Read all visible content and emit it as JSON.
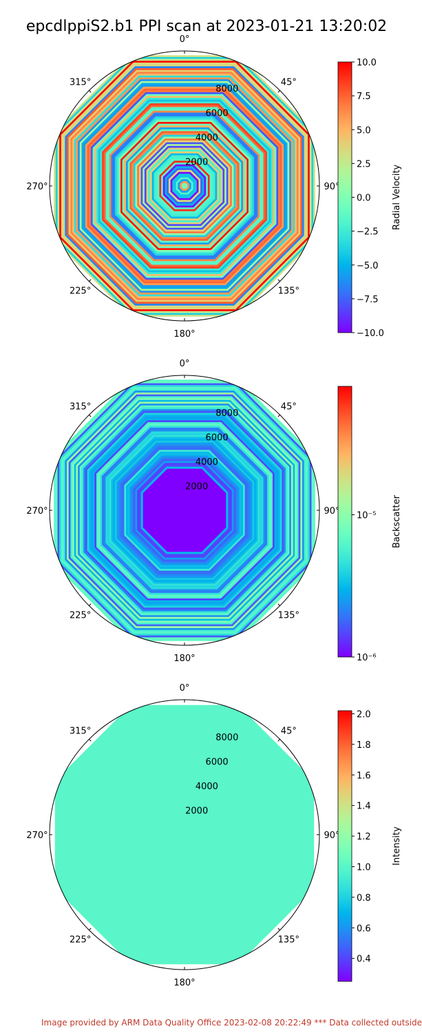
{
  "title": "epcdlppiS2.b1 PPI scan at 2023-01-21 13:20:02",
  "footer": "Image provided by ARM Data Quality Office 2023-02-08 20:22:49    *** Data collected outside",
  "chart_data": [
    {
      "type": "polar",
      "angle_labels": [
        "0°",
        "45°",
        "90°",
        "135°",
        "180°",
        "225°",
        "270°",
        "315°"
      ],
      "radial_ticks": [
        2000,
        4000,
        6000,
        8000
      ],
      "radial_tick_labels": [
        "2000",
        "4000",
        "6000",
        "8000"
      ],
      "rmax": 10000,
      "colorbar": {
        "label": "Radial Velocity",
        "scale": "linear",
        "colormap": "rainbow",
        "range": [
          -10.0,
          10.0
        ],
        "ticks": [
          -10.0,
          -7.5,
          -5.0,
          -2.5,
          0.0,
          2.5,
          5.0,
          7.5,
          10.0
        ],
        "tick_labels": [
          "−10.0",
          "−7.5",
          "−5.0",
          "−2.5",
          "0.0",
          "2.5",
          "5.0",
          "7.5",
          "10.0"
        ]
      },
      "field": "radial_velocity"
    },
    {
      "type": "polar",
      "angle_labels": [
        "0°",
        "45°",
        "90°",
        "135°",
        "180°",
        "225°",
        "270°",
        "315°"
      ],
      "radial_ticks": [
        2000,
        4000,
        6000,
        8000
      ],
      "radial_tick_labels": [
        "2000",
        "4000",
        "6000",
        "8000"
      ],
      "rmax": 10000,
      "colorbar": {
        "label": "Backscatter",
        "scale": "log",
        "colormap": "rainbow",
        "range": [
          1e-06,
          8e-05
        ],
        "ticks": [
          1e-06,
          1e-05
        ],
        "tick_labels": [
          "10⁻⁶",
          "10⁻⁵"
        ]
      },
      "field": "backscatter"
    },
    {
      "type": "polar",
      "angle_labels": [
        "0°",
        "45°",
        "90°",
        "135°",
        "180°",
        "225°",
        "270°",
        "315°"
      ],
      "radial_ticks": [
        2000,
        4000,
        6000,
        8000
      ],
      "radial_tick_labels": [
        "2000",
        "4000",
        "6000",
        "8000"
      ],
      "rmax": 10000,
      "colorbar": {
        "label": "Intensity",
        "scale": "linear",
        "colormap": "rainbow",
        "range": [
          0.25,
          2.02
        ],
        "ticks": [
          0.4,
          0.6,
          0.8,
          1.0,
          1.2,
          1.4,
          1.6,
          1.8,
          2.0
        ],
        "tick_labels": [
          "0.4",
          "0.6",
          "0.8",
          "1.0",
          "1.2",
          "1.4",
          "1.6",
          "1.8",
          "2.0"
        ]
      },
      "field": "intensity",
      "uniform_value": 1.0
    }
  ]
}
